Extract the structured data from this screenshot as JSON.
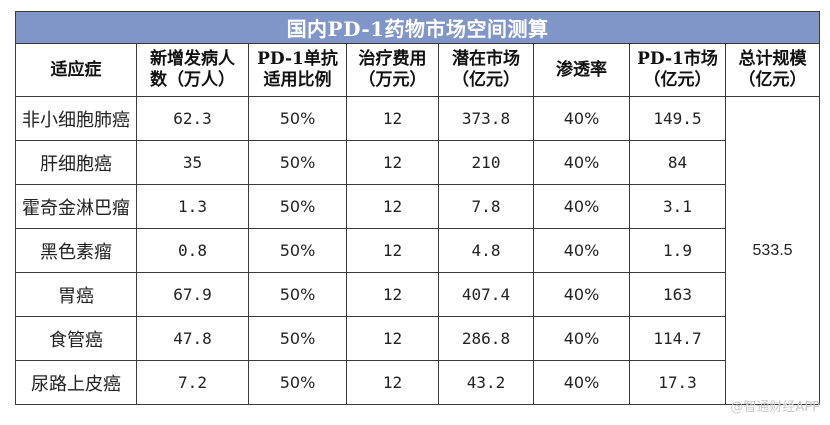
{
  "title": "国内PD-1药物市场空间测算",
  "headers": [
    {
      "line1": "适应症",
      "line2": ""
    },
    {
      "line1": "新增发病人",
      "line2": "数（万人）"
    },
    {
      "line1": "PD-1单抗",
      "line2": "适用比例"
    },
    {
      "line1": "治疗费用",
      "line2": "（万元）"
    },
    {
      "line1": "潜在市场",
      "line2": "（亿元）"
    },
    {
      "line1": "渗透率",
      "line2": ""
    },
    {
      "line1": "PD-1市场",
      "line2": "（亿元）"
    },
    {
      "line1": "总计规模",
      "line2": "（亿元）"
    }
  ],
  "rows": [
    {
      "indication": "非小细胞肺癌",
      "new_cases": "62.3",
      "ratio": "50%",
      "cost": "12",
      "potential": "373.8",
      "penetration": "40%",
      "pd1_market": "149.5"
    },
    {
      "indication": "肝细胞癌",
      "new_cases": "35",
      "ratio": "50%",
      "cost": "12",
      "potential": "210",
      "penetration": "40%",
      "pd1_market": "84"
    },
    {
      "indication": "霍奇金淋巴瘤",
      "new_cases": "1.3",
      "ratio": "50%",
      "cost": "12",
      "potential": "7.8",
      "penetration": "40%",
      "pd1_market": "3.1"
    },
    {
      "indication": "黑色素瘤",
      "new_cases": "0.8",
      "ratio": "50%",
      "cost": "12",
      "potential": "4.8",
      "penetration": "40%",
      "pd1_market": "1.9"
    },
    {
      "indication": "胃癌",
      "new_cases": "67.9",
      "ratio": "50%",
      "cost": "12",
      "potential": "407.4",
      "penetration": "40%",
      "pd1_market": "163"
    },
    {
      "indication": "食管癌",
      "new_cases": "47.8",
      "ratio": "50%",
      "cost": "12",
      "potential": "286.8",
      "penetration": "40%",
      "pd1_market": "114.7"
    },
    {
      "indication": "尿路上皮癌",
      "new_cases": "7.2",
      "ratio": "50%",
      "cost": "12",
      "potential": "43.2",
      "penetration": "40%",
      "pd1_market": "17.3"
    }
  ],
  "total": "533.5",
  "watermark": "@智通财经APP",
  "colors": {
    "title_bg": "#8095c8",
    "title_text": "#ffffff",
    "border": "#3a3a3a"
  }
}
